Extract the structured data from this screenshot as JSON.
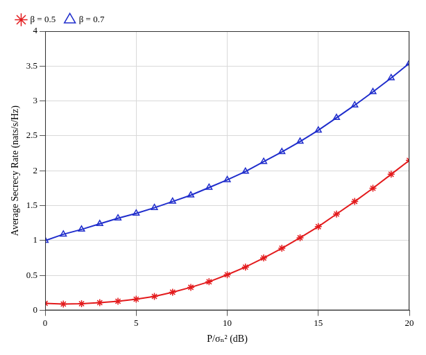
{
  "chart_data": {
    "type": "line",
    "x_label": "P/σₙ² (dB)",
    "y_label": "Average Secrecy Rate (nats/s/Hz)",
    "x": [
      0,
      1,
      2,
      3,
      4,
      5,
      6,
      7,
      8,
      9,
      10,
      11,
      12,
      13,
      14,
      15,
      16,
      17,
      18,
      19,
      20
    ],
    "series": [
      {
        "name": "β = 0.5",
        "color": "#e31a1c",
        "marker": "star",
        "line_style": "solid",
        "values": [
          0.1,
          0.09,
          0.095,
          0.11,
          0.13,
          0.16,
          0.2,
          0.26,
          0.33,
          0.41,
          0.51,
          0.62,
          0.75,
          0.89,
          1.04,
          1.2,
          1.38,
          1.56,
          1.75,
          1.95,
          2.15
        ]
      },
      {
        "name": "β = 0.7",
        "color": "#1f2dcc",
        "marker": "triangle",
        "line_style": "solid",
        "values": [
          1.0,
          1.09,
          1.16,
          1.24,
          1.32,
          1.39,
          1.47,
          1.56,
          1.65,
          1.76,
          1.87,
          1.99,
          2.13,
          2.27,
          2.42,
          2.58,
          2.76,
          2.94,
          3.13,
          3.33,
          3.54
        ]
      }
    ],
    "xlim": [
      0,
      20
    ],
    "xticks": [
      0,
      5,
      10,
      15,
      20
    ],
    "ylim": [
      0,
      4
    ],
    "yticks": [
      0,
      0.5,
      1,
      1.5,
      2,
      2.5,
      3,
      3.5,
      4
    ],
    "grid": true,
    "legend": "top-left"
  }
}
